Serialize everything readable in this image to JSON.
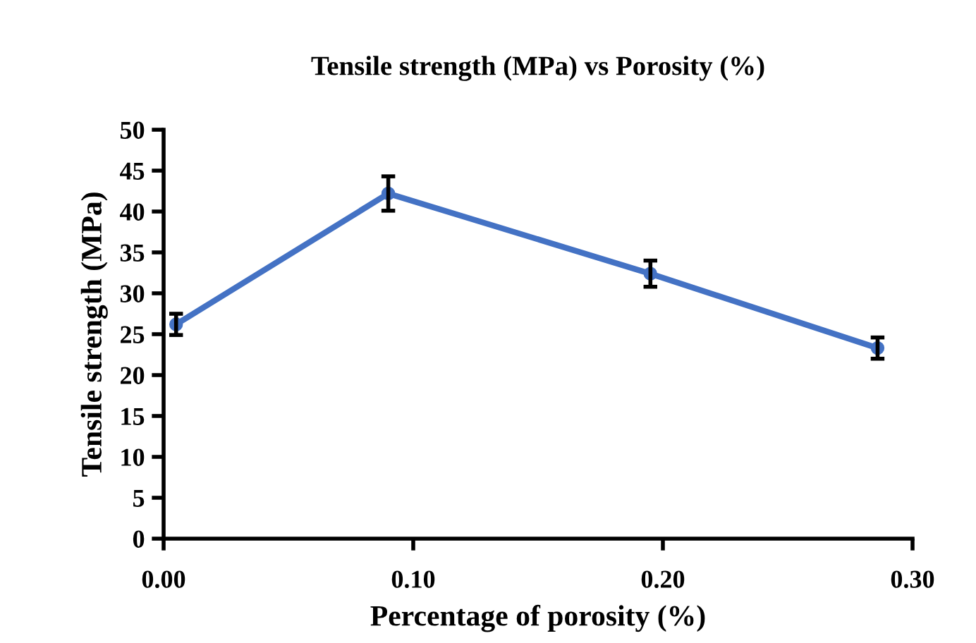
{
  "chart_data": {
    "type": "line",
    "title": "Tensile strength (MPa) vs Porosity (%)",
    "xlabel": "Percentage of porosity (%)",
    "ylabel": "Tensile strength (MPa)",
    "x": [
      0.005,
      0.09,
      0.195,
      0.286
    ],
    "series": [
      {
        "color": "#4472c4",
        "values": [
          26.2,
          42.2,
          32.4,
          23.3
        ],
        "errors": [
          1.3,
          2.1,
          1.6,
          1.3
        ]
      }
    ],
    "xlim": [
      0,
      0.3
    ],
    "xticks": [
      {
        "value": 0,
        "label": "0.00"
      },
      {
        "value": 0.1,
        "label": "0.10"
      },
      {
        "value": 0.2,
        "label": "0.20"
      },
      {
        "value": 0.3,
        "label": "0.30"
      }
    ],
    "ylim": [
      0,
      50
    ],
    "yticks": [
      0,
      5,
      10,
      15,
      20,
      25,
      30,
      35,
      40,
      45,
      50
    ],
    "grid": false,
    "legend": false,
    "marker": "circle",
    "line_style": "solid"
  }
}
